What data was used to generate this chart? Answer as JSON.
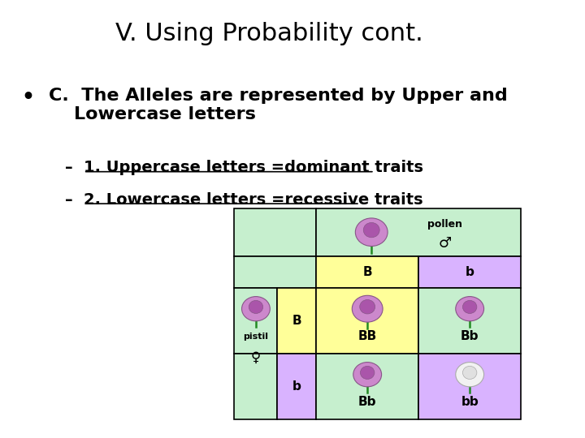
{
  "title": "V. Using Probability cont.",
  "bullet_text": "C.  The Alleles are represented by Upper and\n    Lowercase letters",
  "sub1": "1. Uppercase letters =dominant traits",
  "sub2": "2. Lowercase letters =recessive traits",
  "bg_color": "#ffffff",
  "title_color": "#000000",
  "text_color": "#000000",
  "green_light": "#c6efce",
  "yellow_light": "#ffff99",
  "purple_light": "#d9b3ff"
}
